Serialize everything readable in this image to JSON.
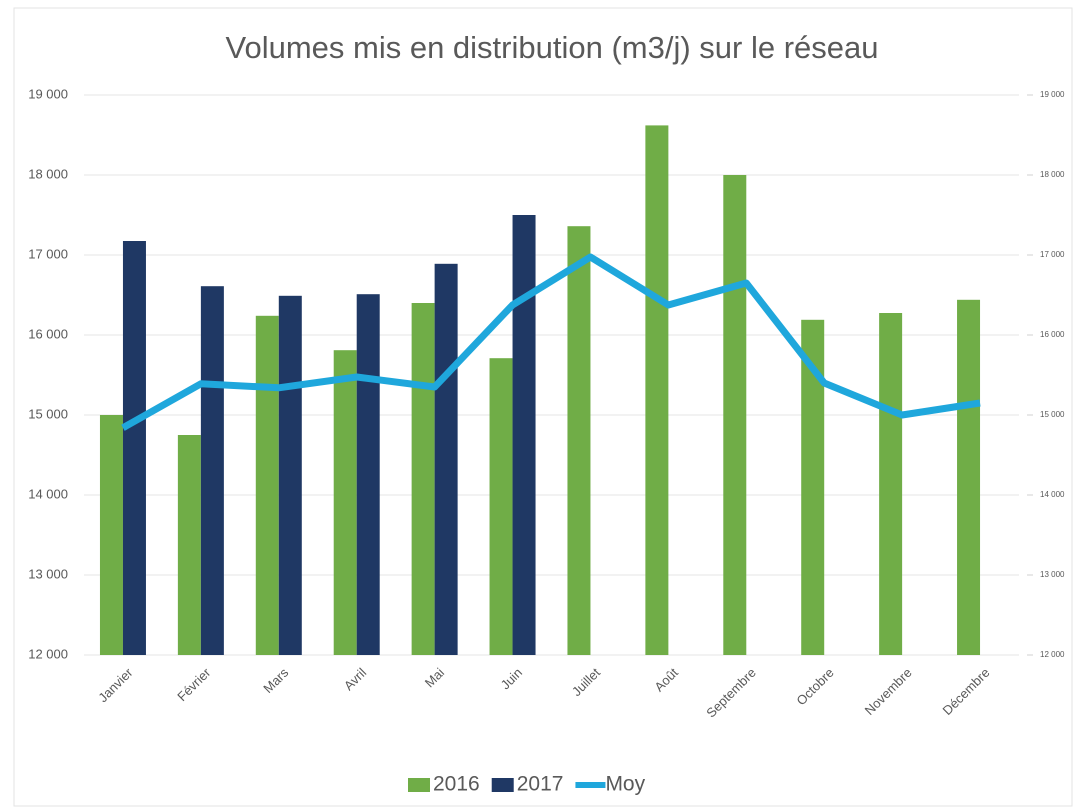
{
  "chart_data": {
    "type": "bar",
    "title": "Volumes mis en distribution (m3/j) sur le réseau",
    "categories": [
      "Janvier",
      "Février",
      "Mars",
      "Avril",
      "Mai",
      "Juin",
      "Juillet",
      "Août",
      "Septembre",
      "Octobre",
      "Novembre",
      "Décembre"
    ],
    "series": [
      {
        "name": "2016",
        "color": "#70ad47",
        "values": [
          15000,
          14750,
          16240,
          15810,
          16400,
          15710,
          17360,
          18620,
          18000,
          16190,
          16275,
          16440
        ]
      },
      {
        "name": "2017",
        "color": "#1f3864",
        "values": [
          17175,
          16610,
          16490,
          16510,
          16890,
          17500,
          null,
          null,
          null,
          null,
          null,
          null
        ]
      },
      {
        "name": "Moy",
        "color": "#1fa7dc",
        "type": "line",
        "axis": "y2",
        "values": [
          14840,
          15390,
          15340,
          15475,
          15350,
          16375,
          16975,
          16375,
          16650,
          15400,
          15000,
          15150
        ]
      }
    ],
    "ylim": [
      12000,
      19000
    ],
    "yticks": [
      {
        "value": 12000,
        "label": "12 000"
      },
      {
        "value": 13000,
        "label": "13 000"
      },
      {
        "value": 14000,
        "label": "14 000"
      },
      {
        "value": 15000,
        "label": "15 000"
      },
      {
        "value": 16000,
        "label": "16 000"
      },
      {
        "value": 17000,
        "label": "17 000"
      },
      {
        "value": 18000,
        "label": "18 000"
      },
      {
        "value": 19000,
        "label": "19 000"
      }
    ],
    "y2lim": [
      12000,
      19000
    ],
    "y2ticks": [
      {
        "value": 12000,
        "label": "12 000"
      },
      {
        "value": 13000,
        "label": "13 000"
      },
      {
        "value": 14000,
        "label": "14 000"
      },
      {
        "value": 15000,
        "label": "15 000"
      },
      {
        "value": 16000,
        "label": "16 000"
      },
      {
        "value": 17000,
        "label": "17 000"
      },
      {
        "value": 18000,
        "label": "18 000"
      },
      {
        "value": 19000,
        "label": "19 000"
      }
    ],
    "grid": true,
    "legend": "bottom"
  }
}
